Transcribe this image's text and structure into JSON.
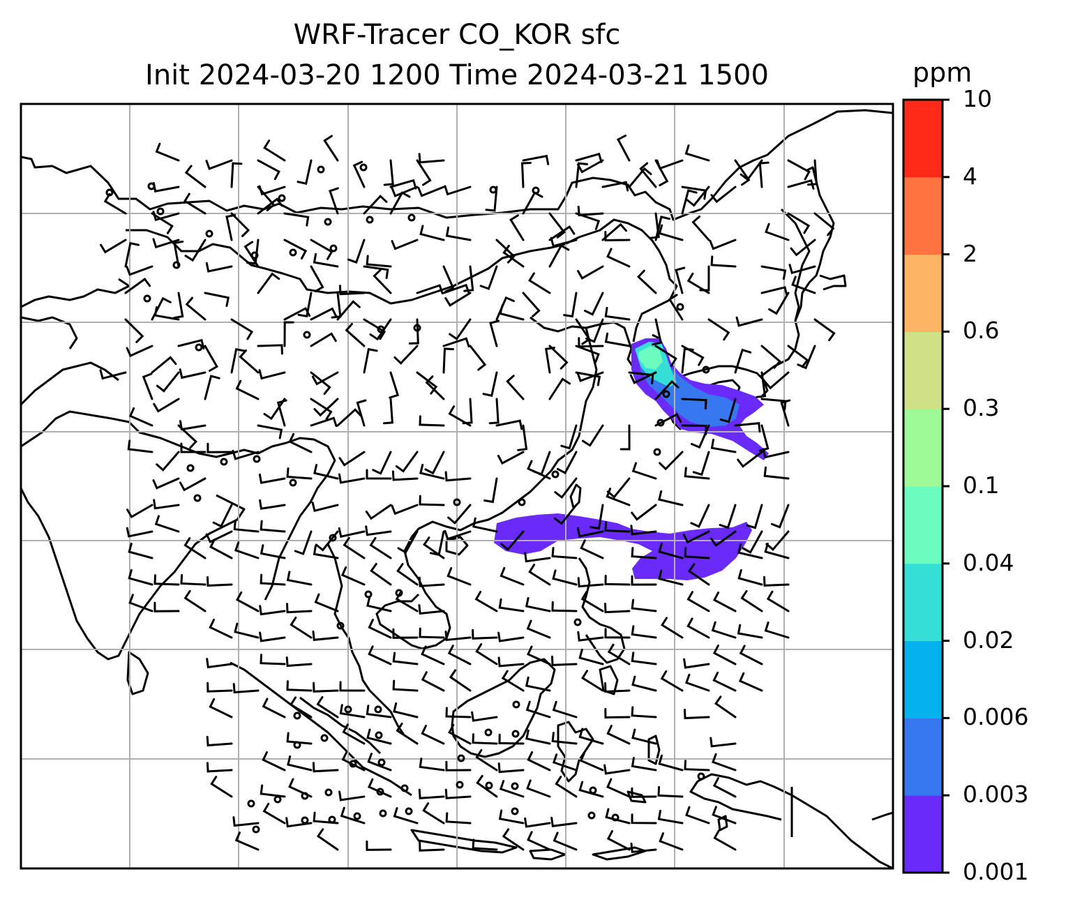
{
  "title": {
    "line1": "WRF-Tracer CO_KOR sfc",
    "line2": "Init 2024-03-20 1200 Time 2024-03-21 1500"
  },
  "colorbar": {
    "unit": "ppm",
    "levels": [
      "0.001",
      "0.003",
      "0.006",
      "0.02",
      "0.04",
      "0.1",
      "0.3",
      "0.6",
      "2",
      "4",
      "10"
    ],
    "colors": [
      "#6a2bfa",
      "#3778f0",
      "#06b2ec",
      "#35dfd6",
      "#6cfcbf",
      "#9efa96",
      "#d0e086",
      "#fdb464",
      "#fe7340",
      "#ff2a18"
    ]
  },
  "map": {
    "line_color": "#000000",
    "grid_color": "#b0b0b0",
    "plume_colors": {
      "outer": "#6a2bfa",
      "inner": "#3778f0",
      "core": "#35dfd6",
      "peak": "#6cfcbf"
    }
  }
}
